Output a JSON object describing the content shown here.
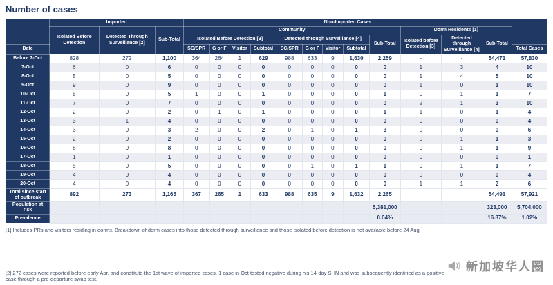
{
  "title": "Number of cases",
  "header": {
    "imported": "Imported",
    "non_imported": "Non-Imported Cases",
    "community": "Community",
    "dorm": "Dorm Residents [1]",
    "imp_isolated": "Isolated Before Detection",
    "imp_detected": "Detected Through Surveillance [2]",
    "imp_subtotal": "Sub-Total",
    "comm_isolated": "Isolated Before Detection [3]",
    "comm_detected": "Detected through Surveillance [4]",
    "comm_subtotal": "Sub-Total",
    "dorm_isolated": "Isolated before Detection [3]",
    "dorm_detected": "Detected through Surveillance [4]",
    "dorm_subtotal": "Sub-Total",
    "date": "Date",
    "sc_spr": "SC/SPR",
    "g_or_f": "G or F",
    "visitor": "Visitor",
    "subtotal": "Subtotal",
    "total_cases": "Total Cases"
  },
  "table": {
    "rows": [
      {
        "date": "Before 7-Oct",
        "values": [
          "828",
          "272",
          "1,100",
          "364",
          "264",
          "1",
          "629",
          "988",
          "633",
          "9",
          "1,630",
          "2,259",
          "-",
          "-",
          "54,471",
          "57,830"
        ]
      },
      {
        "date": "7-Oct",
        "values": [
          "6",
          "0",
          "6",
          "0",
          "0",
          "0",
          "0",
          "0",
          "0",
          "0",
          "0",
          "0",
          "1",
          "3",
          "4",
          "10"
        ]
      },
      {
        "date": "8-Oct",
        "values": [
          "5",
          "0",
          "5",
          "0",
          "0",
          "0",
          "0",
          "0",
          "0",
          "0",
          "0",
          "0",
          "1",
          "4",
          "5",
          "10"
        ]
      },
      {
        "date": "9-Oct",
        "values": [
          "9",
          "0",
          "9",
          "0",
          "0",
          "0",
          "0",
          "0",
          "0",
          "0",
          "0",
          "0",
          "1",
          "0",
          "1",
          "10"
        ]
      },
      {
        "date": "10-Oct",
        "values": [
          "5",
          "0",
          "5",
          "1",
          "0",
          "0",
          "1",
          "0",
          "0",
          "0",
          "0",
          "1",
          "0",
          "1",
          "1",
          "7"
        ]
      },
      {
        "date": "11-Oct",
        "values": [
          "7",
          "0",
          "7",
          "0",
          "0",
          "0",
          "0",
          "0",
          "0",
          "0",
          "0",
          "0",
          "2",
          "1",
          "3",
          "10"
        ]
      },
      {
        "date": "12-Oct",
        "values": [
          "2",
          "0",
          "2",
          "0",
          "1",
          "0",
          "1",
          "0",
          "0",
          "0",
          "0",
          "1",
          "1",
          "0",
          "1",
          "4"
        ]
      },
      {
        "date": "13-Oct",
        "values": [
          "3",
          "1",
          "4",
          "0",
          "0",
          "0",
          "0",
          "0",
          "0",
          "0",
          "0",
          "0",
          "0",
          "0",
          "0",
          "4"
        ]
      },
      {
        "date": "14-Oct",
        "values": [
          "3",
          "0",
          "3",
          "2",
          "0",
          "0",
          "2",
          "0",
          "1",
          "0",
          "1",
          "3",
          "0",
          "0",
          "0",
          "6"
        ]
      },
      {
        "date": "15-Oct",
        "values": [
          "2",
          "0",
          "2",
          "0",
          "0",
          "0",
          "0",
          "0",
          "0",
          "0",
          "0",
          "0",
          "0",
          "1",
          "1",
          "3"
        ]
      },
      {
        "date": "16-Oct",
        "values": [
          "8",
          "0",
          "8",
          "0",
          "0",
          "0",
          "0",
          "0",
          "0",
          "0",
          "0",
          "0",
          "0",
          "1",
          "1",
          "9"
        ]
      },
      {
        "date": "17-Oct",
        "values": [
          "1",
          "0",
          "1",
          "0",
          "0",
          "0",
          "0",
          "0",
          "0",
          "0",
          "0",
          "0",
          "0",
          "0",
          "0",
          "1"
        ]
      },
      {
        "date": "18-Oct",
        "values": [
          "5",
          "0",
          "5",
          "0",
          "0",
          "0",
          "0",
          "0",
          "1",
          "0",
          "1",
          "1",
          "0",
          "1",
          "1",
          "7"
        ]
      },
      {
        "date": "19-Oct",
        "values": [
          "4",
          "0",
          "4",
          "0",
          "0",
          "0",
          "0",
          "0",
          "0",
          "0",
          "0",
          "0",
          "0",
          "0",
          "0",
          "4"
        ]
      },
      {
        "date": "20-Oct",
        "values": [
          "4",
          "0",
          "4",
          "0",
          "0",
          "0",
          "0",
          "0",
          "0",
          "0",
          "0",
          "0",
          "1",
          "1",
          "2",
          "6"
        ]
      }
    ],
    "total_row": {
      "label": "Total since start of outbreak",
      "values": [
        "892",
        "273",
        "1,165",
        "367",
        "265",
        "1",
        "633",
        "988",
        "635",
        "9",
        "1,632",
        "2,265",
        "",
        "",
        "54,491",
        "57,921"
      ]
    },
    "population_row": {
      "label": "Population at risk",
      "values": [
        "",
        "",
        "",
        "",
        "",
        "",
        "",
        "",
        "",
        "",
        "",
        "5,381,000",
        "",
        "",
        "323,000",
        "5,704,000"
      ]
    },
    "prevalence_row": {
      "label": "Prevalence",
      "values": [
        "",
        "",
        "",
        "",
        "",
        "",
        "",
        "",
        "",
        "",
        "",
        "0.04%",
        "",
        "",
        "16.87%",
        "1.02%"
      ]
    }
  },
  "footnotes": [
    "[1] Includes PRs and visitors residing in dorms. Breakdown of dorm cases into those detected through surveillance and those isolated before detection is not available before 24 Aug.",
    "[2] 272 cases were reported before early Apr, and constitute the 1st wave of imported cases. 1 case in Oct tested negative during his 14-day SHN and was subsequently identified as a positive case through a pre-departure swab test."
  ],
  "watermark": {
    "text": "新加坡华人圈",
    "icon": "megaphone-icon"
  },
  "colors": {
    "header_bg": "#203864",
    "navy_text": "#1F3864",
    "alt_row": "#EBEDF3",
    "summary_row": "#E9EBF2",
    "footnote_text": "#44546A"
  }
}
